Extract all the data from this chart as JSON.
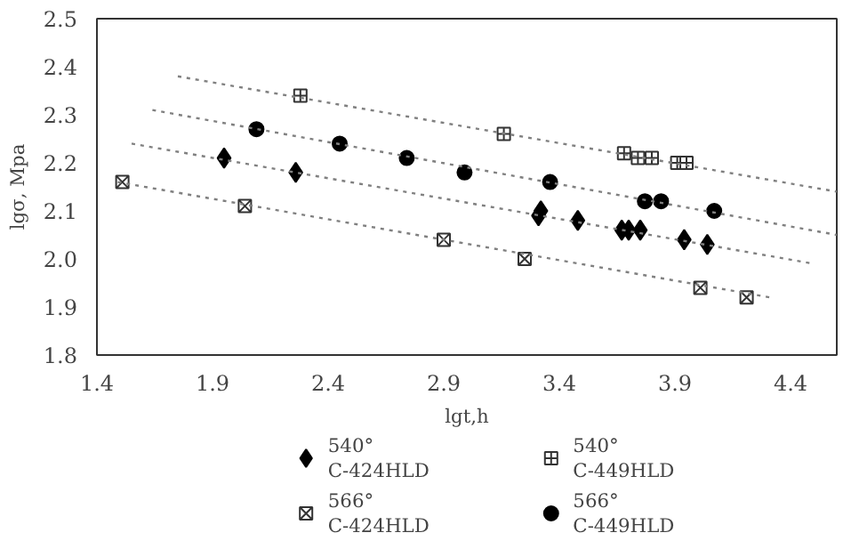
{
  "chart_data": {
    "type": "scatter",
    "xlabel": "lgt,h",
    "ylabel": "lgσ, Mpa",
    "xlim": [
      1.4,
      4.6
    ],
    "ylim": [
      1.8,
      2.5
    ],
    "xticks": [
      1.4,
      1.9,
      2.4,
      2.9,
      3.4,
      3.9,
      4.4
    ],
    "yticks": [
      1.8,
      1.9,
      {
        "value": 2.0,
        "label": "2.0"
      },
      2.1,
      2.2,
      2.3,
      2.4,
      2.5
    ],
    "grid": false,
    "legend": "bottom",
    "series": [
      {
        "name": "540°\nC-424HLD",
        "type": "scatter",
        "marker": "diamond",
        "color": "#000000",
        "x": [
          1.95,
          2.26,
          3.31,
          3.32,
          3.48,
          3.67,
          3.7,
          3.75,
          3.94,
          4.04
        ],
        "values": [
          2.21,
          2.18,
          2.09,
          2.1,
          2.08,
          2.06,
          2.06,
          2.06,
          2.04,
          2.03
        ]
      },
      {
        "name": "540°\nC-449HLD",
        "type": "scatter",
        "marker": "cross",
        "color": "#333333",
        "x": [
          2.28,
          3.16,
          3.68,
          3.74,
          3.8,
          3.91,
          3.95
        ],
        "values": [
          2.34,
          2.26,
          2.22,
          2.21,
          2.21,
          2.2,
          2.2
        ]
      },
      {
        "name": "566°\nC-424HLD",
        "type": "scatter",
        "marker": "cross",
        "color": "#333333",
        "x": [
          1.51,
          2.04,
          2.9,
          3.25,
          4.01,
          4.21
        ],
        "values": [
          2.16,
          2.11,
          2.04,
          2.0,
          1.94,
          1.92
        ]
      },
      {
        "name": "566°\nC-449HLD",
        "type": "scatter",
        "marker": "circle",
        "color": "#000000",
        "x": [
          2.09,
          2.45,
          2.74,
          2.99,
          3.36,
          3.77,
          3.84,
          4.07
        ],
        "values": [
          2.27,
          2.24,
          2.21,
          2.18,
          2.16,
          2.12,
          2.12,
          2.1
        ]
      },
      {
        "type": "line",
        "line_style": "dotted",
        "marker": "none",
        "color": "#808080",
        "x": [
          1.75,
          4.6
        ],
        "values": [
          2.38,
          2.14
        ]
      },
      {
        "type": "line",
        "line_style": "dotted",
        "marker": "none",
        "color": "#808080",
        "x": [
          1.64,
          4.6
        ],
        "values": [
          2.31,
          2.05
        ]
      },
      {
        "type": "line",
        "line_style": "dotted",
        "marker": "none",
        "color": "#808080",
        "x": [
          1.55,
          4.5
        ],
        "values": [
          2.24,
          1.99
        ]
      },
      {
        "type": "line",
        "line_style": "dotted",
        "marker": "none",
        "color": "#808080",
        "x": [
          1.49,
          4.31
        ],
        "values": [
          2.16,
          1.92
        ]
      }
    ]
  }
}
